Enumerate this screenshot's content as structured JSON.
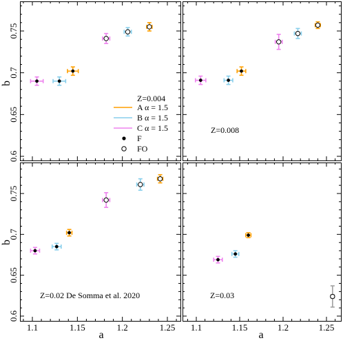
{
  "chart_data": {
    "type": "scatter",
    "grid": false,
    "xlabel": "a",
    "ylabel": "b",
    "xlim": [
      1.08,
      1.27
    ],
    "ylim": [
      0.595,
      0.79
    ],
    "xticks": [
      "1.1",
      "1.15",
      "1.2",
      "1.25"
    ],
    "yticks": [
      "0.6",
      "0.65",
      "0.7",
      "0.75"
    ],
    "colors": {
      "A": "#ff9f00",
      "B": "#87ceeb",
      "C": "#ee82ee",
      "extra": "#a0a0a0"
    },
    "legend": {
      "placement": "center-right of top-left panel",
      "title": "Z=0.004",
      "entries": [
        {
          "key": "A",
          "label": "A α = 1.5",
          "kind": "line"
        },
        {
          "key": "B",
          "label": "B α = 1.5",
          "kind": "line"
        },
        {
          "key": "C",
          "label": "C α = 1.5",
          "kind": "line"
        },
        {
          "key": "F",
          "label": "F",
          "kind": "filled"
        },
        {
          "key": "FO",
          "label": "FO",
          "kind": "open"
        }
      ]
    },
    "panels": [
      {
        "annotation": "",
        "points": [
          {
            "set": "C",
            "mode": "F",
            "x": 1.105,
            "y": 0.69,
            "xerr": 0.007,
            "yerr": 0.005
          },
          {
            "set": "B",
            "mode": "F",
            "x": 1.13,
            "y": 0.69,
            "xerr": 0.007,
            "yerr": 0.005
          },
          {
            "set": "A",
            "mode": "F",
            "x": 1.145,
            "y": 0.702,
            "xerr": 0.006,
            "yerr": 0.005
          },
          {
            "set": "C",
            "mode": "FO",
            "x": 1.182,
            "y": 0.741,
            "xerr": 0.004,
            "yerr": 0.006
          },
          {
            "set": "B",
            "mode": "FO",
            "x": 1.206,
            "y": 0.749,
            "xerr": 0.004,
            "yerr": 0.005
          },
          {
            "set": "A",
            "mode": "FO",
            "x": 1.23,
            "y": 0.755,
            "xerr": 0.003,
            "yerr": 0.005
          }
        ]
      },
      {
        "annotation": "Z=0.008",
        "points": [
          {
            "set": "C",
            "mode": "F",
            "x": 1.105,
            "y": 0.691,
            "xerr": 0.006,
            "yerr": 0.005
          },
          {
            "set": "B",
            "mode": "F",
            "x": 1.137,
            "y": 0.691,
            "xerr": 0.005,
            "yerr": 0.005
          },
          {
            "set": "A",
            "mode": "F",
            "x": 1.152,
            "y": 0.702,
            "xerr": 0.005,
            "yerr": 0.005
          },
          {
            "set": "C",
            "mode": "FO",
            "x": 1.195,
            "y": 0.737,
            "xerr": 0.004,
            "yerr": 0.009
          },
          {
            "set": "B",
            "mode": "FO",
            "x": 1.217,
            "y": 0.747,
            "xerr": 0.004,
            "yerr": 0.006
          },
          {
            "set": "A",
            "mode": "FO",
            "x": 1.24,
            "y": 0.757,
            "xerr": 0.003,
            "yerr": 0.004
          }
        ]
      },
      {
        "annotation": "Z=0.02 De Somma et al. 2020",
        "points": [
          {
            "set": "C",
            "mode": "F",
            "x": 1.103,
            "y": 0.68,
            "xerr": 0.005,
            "yerr": 0.004
          },
          {
            "set": "B",
            "mode": "F",
            "x": 1.127,
            "y": 0.685,
            "xerr": 0.005,
            "yerr": 0.004
          },
          {
            "set": "A",
            "mode": "F",
            "x": 1.141,
            "y": 0.702,
            "xerr": 0.003,
            "yerr": 0.004
          },
          {
            "set": "C",
            "mode": "FO",
            "x": 1.182,
            "y": 0.742,
            "xerr": 0.004,
            "yerr": 0.009
          },
          {
            "set": "B",
            "mode": "FO",
            "x": 1.22,
            "y": 0.761,
            "xerr": 0.004,
            "yerr": 0.007
          },
          {
            "set": "A",
            "mode": "FO",
            "x": 1.242,
            "y": 0.768,
            "xerr": 0.003,
            "yerr": 0.005
          }
        ]
      },
      {
        "annotation": "Z=0.03",
        "points": [
          {
            "set": "C",
            "mode": "F",
            "x": 1.125,
            "y": 0.669,
            "xerr": 0.005,
            "yerr": 0.004
          },
          {
            "set": "B",
            "mode": "F",
            "x": 1.145,
            "y": 0.676,
            "xerr": 0.004,
            "yerr": 0.004
          },
          {
            "set": "A",
            "mode": "F",
            "x": 1.16,
            "y": 0.699,
            "xerr": 0.003,
            "yerr": 0.003
          },
          {
            "set": "extra",
            "mode": "FO",
            "x": 1.257,
            "y": 0.624,
            "xerr": 0.002,
            "yerr": 0.013
          }
        ]
      }
    ]
  }
}
